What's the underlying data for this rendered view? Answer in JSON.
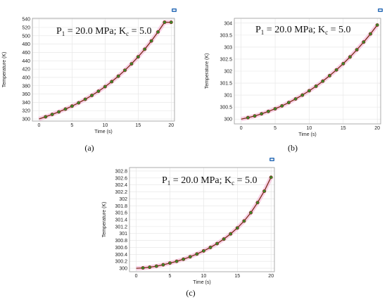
{
  "figure": {
    "panels": [
      {
        "caption": "(a)",
        "annotation": {
          "p": "P",
          "psub": "1",
          "mid": " = 20.0 MPa; K",
          "ksub": "c",
          "end": " = 5.0"
        }
      },
      {
        "caption": "(b)",
        "annotation": {
          "p": "P",
          "psub": "1",
          "mid": " = 20.0 MPa; K",
          "ksub": "c",
          "end": " = 5.0"
        }
      },
      {
        "caption": "(c)",
        "annotation": {
          "p": "P",
          "psub": "1",
          "mid": " = 20.0 MPa; K",
          "ksub": "c",
          "end": " = 5.0"
        }
      }
    ],
    "icon": "plot-toolbar-icon"
  },
  "chart_data": [
    {
      "type": "line",
      "xlabel": "Time (s)",
      "ylabel": "Temperature (K)",
      "xlim": [
        -1,
        20.5
      ],
      "ylim": [
        295,
        542
      ],
      "xticks": [
        0,
        5,
        10,
        15,
        20
      ],
      "xtick_labels": [
        "0",
        "5",
        "10",
        "15",
        "20"
      ],
      "yticks": [
        300,
        320,
        340,
        360,
        380,
        400,
        420,
        440,
        460,
        480,
        500,
        520,
        540
      ],
      "ytick_labels": [
        "300",
        "320",
        "340",
        "360",
        "380",
        "400",
        "420",
        "440",
        "460",
        "480",
        "500",
        "520",
        "540"
      ],
      "grid": true,
      "x": [
        0,
        1,
        2,
        3,
        4,
        5,
        6,
        7,
        8,
        9,
        10,
        11,
        12,
        13,
        14,
        15,
        16,
        17,
        18,
        19,
        20
      ],
      "y": [
        300,
        305.3,
        311,
        317.1,
        323.8,
        331,
        338.9,
        347.4,
        356.7,
        366.8,
        377.8,
        389.8,
        402.9,
        417.2,
        432.6,
        449.4,
        467.7,
        487.6,
        509.1,
        532.5,
        532.5
      ],
      "markers_x": [
        1,
        2,
        3,
        4,
        5,
        6,
        7,
        8,
        9,
        10,
        11,
        12,
        13,
        14,
        15,
        16,
        17,
        18,
        19,
        20
      ],
      "color": "#7a2a16"
    },
    {
      "type": "line",
      "xlabel": "Time (s)",
      "ylabel": "Temperature (K)",
      "xlim": [
        -1,
        20.5
      ],
      "ylim": [
        299.8,
        304.2
      ],
      "xticks": [
        0,
        5,
        10,
        15,
        20
      ],
      "xtick_labels": [
        "0",
        "5",
        "10",
        "15",
        "20"
      ],
      "yticks": [
        300,
        300.5,
        301,
        301.5,
        302,
        302.5,
        303,
        303.5,
        304
      ],
      "ytick_labels": [
        "300",
        "300.5",
        "301",
        "301.5",
        "302",
        "302.5",
        "303",
        "303.5",
        "304"
      ],
      "grid": true,
      "x": [
        0,
        1,
        2,
        3,
        4,
        5,
        6,
        7,
        8,
        9,
        10,
        11,
        12,
        13,
        14,
        15,
        16,
        17,
        18,
        19,
        20
      ],
      "y": [
        300,
        300.06,
        300.13,
        300.22,
        300.32,
        300.43,
        300.55,
        300.69,
        300.84,
        301.0,
        301.18,
        301.37,
        301.58,
        301.81,
        302.05,
        302.31,
        302.59,
        302.89,
        303.21,
        303.55,
        303.92
      ],
      "markers_x": [
        1,
        2,
        3,
        4,
        5,
        6,
        7,
        8,
        9,
        10,
        11,
        12,
        13,
        14,
        15,
        16,
        17,
        18,
        19,
        20
      ],
      "color": "#7a2a16"
    },
    {
      "type": "line",
      "xlabel": "Time (s)",
      "ylabel": "Temperature (K)",
      "xlim": [
        -1,
        20.5
      ],
      "ylim": [
        299.9,
        302.9
      ],
      "xticks": [
        0,
        5,
        10,
        15,
        20
      ],
      "xtick_labels": [
        "0",
        "5",
        "10",
        "15",
        "20"
      ],
      "yticks": [
        300,
        300.2,
        300.4,
        300.6,
        300.8,
        301,
        301.2,
        301.4,
        301.6,
        301.8,
        302,
        302.2,
        302.4,
        302.6,
        302.8
      ],
      "ytick_labels": [
        "300",
        "300.2",
        "300.4",
        "300.6",
        "300.8",
        "301",
        "301.2",
        "301.4",
        "301.6",
        "301.8",
        "302",
        "302.2",
        "302.4",
        "302.6",
        "302.8"
      ],
      "grid": true,
      "x": [
        0,
        1,
        2,
        3,
        4,
        5,
        6,
        7,
        8,
        9,
        10,
        11,
        12,
        13,
        14,
        15,
        16,
        17,
        18,
        19,
        20
      ],
      "y": [
        300,
        300.01,
        300.03,
        300.06,
        300.1,
        300.15,
        300.2,
        300.26,
        300.33,
        300.41,
        300.5,
        300.6,
        300.71,
        300.84,
        300.99,
        301.16,
        301.36,
        301.6,
        301.89,
        302.22,
        302.62
      ],
      "markers_x": [
        1,
        2,
        3,
        4,
        5,
        6,
        7,
        8,
        9,
        10,
        11,
        12,
        13,
        14,
        15,
        16,
        17,
        18,
        19,
        20
      ],
      "color": "#7a2a16"
    }
  ]
}
